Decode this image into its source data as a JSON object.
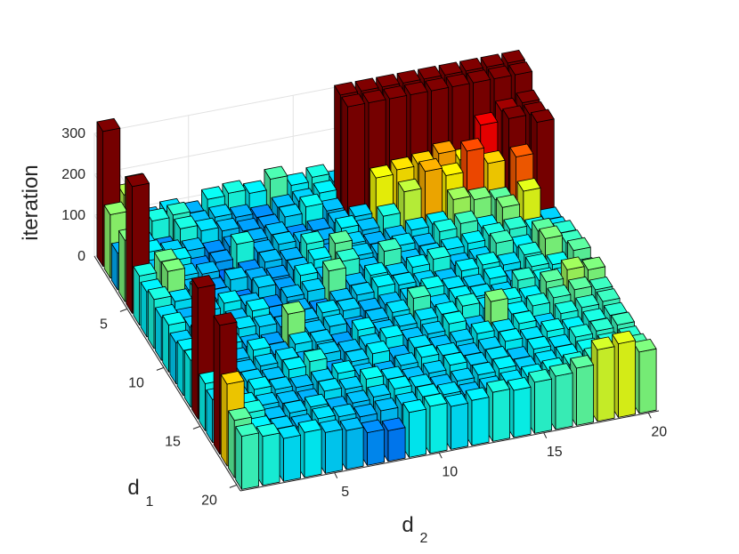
{
  "chart_data": {
    "type": "bar3",
    "xlabel_main": "d",
    "xlabel_sub": "2",
    "ylabel_main": "d",
    "ylabel_sub": "1",
    "zlabel": "iteration",
    "x_ticks": [
      5,
      10,
      15,
      20
    ],
    "y_ticks": [
      5,
      10,
      15,
      20
    ],
    "z_ticks": [
      0,
      100,
      200,
      300
    ],
    "x_range": [
      1,
      20
    ],
    "y_range": [
      1,
      20
    ],
    "zlim": [
      0,
      300
    ],
    "colormap": "jet",
    "grid": true,
    "values": [
      [
        330,
        165,
        95,
        105,
        90,
        115,
        120,
        110,
        135,
        110,
        120,
        100,
        90,
        105,
        110,
        115,
        95,
        100,
        85,
        80
      ],
      [
        155,
        215,
        120,
        125,
        95,
        100,
        90,
        80,
        95,
        100,
        110,
        340,
        340,
        340,
        340,
        340,
        340,
        340,
        340,
        340
      ],
      [
        90,
        100,
        80,
        120,
        105,
        95,
        85,
        85,
        100,
        115,
        95,
        340,
        340,
        340,
        340,
        340,
        340,
        340,
        340,
        340
      ],
      [
        150,
        110,
        100,
        95,
        80,
        85,
        90,
        95,
        80,
        85,
        95,
        100,
        185,
        195,
        200,
        215,
        190,
        265,
        290,
        300
      ],
      [
        310,
        95,
        110,
        80,
        85,
        120,
        90,
        100,
        95,
        90,
        110,
        95,
        120,
        170,
        210,
        190,
        240,
        200,
        300,
        300
      ],
      [
        120,
        145,
        100,
        95,
        70,
        80,
        95,
        90,
        120,
        85,
        100,
        90,
        95,
        105,
        110,
        160,
        150,
        140,
        235,
        310
      ],
      [
        110,
        150,
        95,
        85,
        100,
        90,
        85,
        95,
        110,
        140,
        100,
        95,
        105,
        95,
        120,
        130,
        110,
        150,
        180,
        100
      ],
      [
        120,
        105,
        120,
        90,
        75,
        100,
        85,
        110,
        95,
        125,
        95,
        130,
        95,
        100,
        105,
        110,
        120,
        125,
        115,
        105
      ],
      [
        105,
        90,
        100,
        110,
        95,
        80,
        95,
        100,
        140,
        95,
        110,
        100,
        110,
        120,
        95,
        100,
        130,
        110,
        140,
        125
      ],
      [
        115,
        100,
        85,
        95,
        110,
        85,
        90,
        80,
        95,
        100,
        110,
        105,
        100,
        95,
        110,
        115,
        105,
        120,
        150,
        130
      ],
      [
        100,
        110,
        95,
        105,
        100,
        90,
        95,
        105,
        100,
        90,
        95,
        100,
        115,
        105,
        100,
        110,
        95,
        120,
        115,
        140
      ],
      [
        110,
        95,
        105,
        90,
        85,
        150,
        95,
        100,
        85,
        95,
        105,
        130,
        100,
        110,
        105,
        100,
        125,
        115,
        110,
        120
      ],
      [
        115,
        100,
        95,
        110,
        90,
        105,
        100,
        85,
        110,
        95,
        100,
        105,
        110,
        120,
        105,
        115,
        110,
        140,
        160,
        150
      ],
      [
        320,
        170,
        95,
        100,
        105,
        90,
        100,
        95,
        100,
        110,
        95,
        100,
        115,
        95,
        150,
        110,
        120,
        130,
        140,
        130
      ],
      [
        115,
        105,
        100,
        95,
        110,
        120,
        85,
        100,
        110,
        90,
        105,
        95,
        100,
        110,
        105,
        115,
        100,
        120,
        125,
        130
      ],
      [
        105,
        95,
        110,
        100,
        95,
        100,
        110,
        95,
        90,
        100,
        110,
        105,
        95,
        100,
        110,
        105,
        115,
        110,
        120,
        125
      ],
      [
        315,
        110,
        100,
        95,
        90,
        105,
        100,
        115,
        105,
        95,
        100,
        110,
        100,
        105,
        95,
        110,
        105,
        120,
        125,
        130
      ],
      [
        200,
        120,
        95,
        100,
        105,
        90,
        95,
        100,
        110,
        105,
        95,
        100,
        105,
        110,
        100,
        105,
        110,
        115,
        120,
        125
      ],
      [
        140,
        110,
        100,
        95,
        105,
        100,
        90,
        95,
        100,
        110,
        105,
        95,
        100,
        105,
        110,
        115,
        120,
        125,
        130,
        135
      ],
      [
        130,
        120,
        105,
        110,
        100,
        95,
        80,
        75,
        110,
        115,
        105,
        110,
        120,
        115,
        125,
        130,
        140,
        175,
        180,
        150
      ]
    ]
  }
}
